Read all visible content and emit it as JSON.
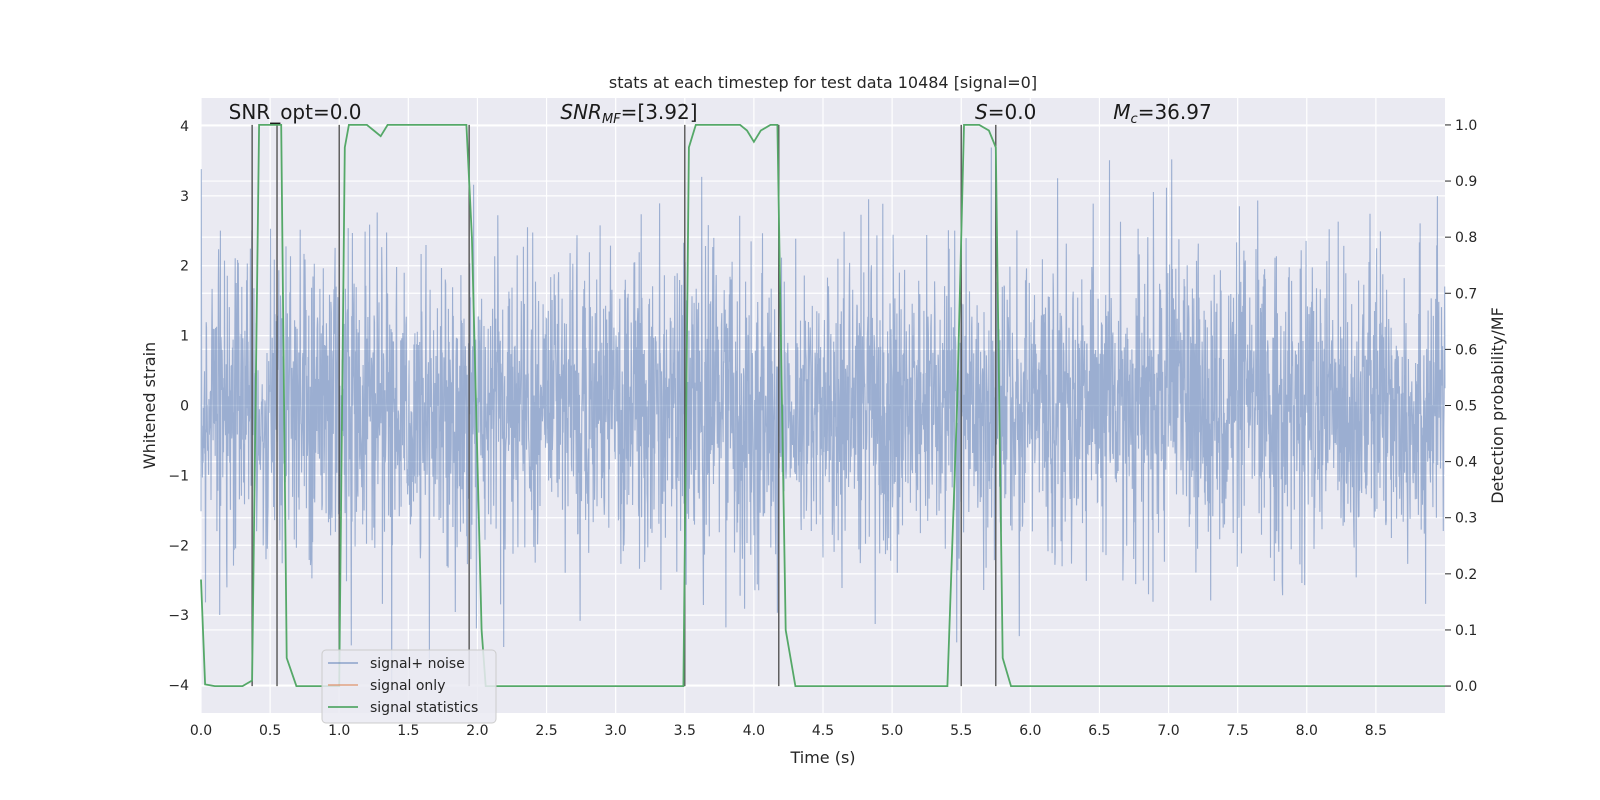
{
  "chart_data": {
    "type": "line",
    "title": "stats at each timestep for test data 10484 [signal=0]",
    "xlabel": "Time (s)",
    "ylabel": "Whitened strain",
    "y2label": "Detection probability/MF",
    "xlim": [
      0,
      9.0
    ],
    "ylim": [
      -4.4,
      4.4
    ],
    "y2lim": [
      -0.048,
      1.048
    ],
    "xticks": [
      0.0,
      0.5,
      1.0,
      1.5,
      2.0,
      2.5,
      3.0,
      3.5,
      4.0,
      4.5,
      5.0,
      5.5,
      6.0,
      6.5,
      7.0,
      7.5,
      8.0,
      8.5
    ],
    "xtick_labels": [
      "0.0",
      "0.5",
      "1.0",
      "1.5",
      "2.0",
      "2.5",
      "3.0",
      "3.5",
      "4.0",
      "4.5",
      "5.0",
      "5.5",
      "6.0",
      "6.5",
      "7.0",
      "7.5",
      "8.0",
      "8.5"
    ],
    "yticks": [
      -4,
      -3,
      -2,
      -1,
      0,
      1,
      2,
      3,
      4
    ],
    "ytick_labels": [
      "−4",
      "−3",
      "−2",
      "−1",
      "0",
      "1",
      "2",
      "3",
      "4"
    ],
    "y2ticks": [
      0.0,
      0.1,
      0.2,
      0.3,
      0.4,
      0.5,
      0.6,
      0.7,
      0.8,
      0.9,
      1.0
    ],
    "y2tick_labels": [
      "0.0",
      "0.1",
      "0.2",
      "0.3",
      "0.4",
      "0.5",
      "0.6",
      "0.7",
      "0.8",
      "0.9",
      "1.0"
    ],
    "grid": true,
    "legend_position": "lower-left",
    "series": [
      {
        "name": "signal+ noise",
        "color": "#4c72b0",
        "description": "whitened strain noise, roughly within ±2.5 with peaks to about ±4, spanning 0–9 s"
      },
      {
        "name": "signal only",
        "color": "#dd8452",
        "values": []
      },
      {
        "name": "signal statistics",
        "color": "#55a868",
        "axis": "right",
        "points": [
          [
            0.0,
            0.19
          ],
          [
            0.03,
            0.003
          ],
          [
            0.1,
            0.0
          ],
          [
            0.3,
            0.0
          ],
          [
            0.37,
            0.01
          ],
          [
            0.42,
            1.0
          ],
          [
            0.47,
            1.0
          ],
          [
            0.52,
            1.0
          ],
          [
            0.58,
            1.0
          ],
          [
            0.62,
            0.05
          ],
          [
            0.69,
            0.0
          ],
          [
            0.98,
            0.0
          ],
          [
            1.0,
            0.0
          ],
          [
            1.04,
            0.96
          ],
          [
            1.07,
            1.0
          ],
          [
            1.2,
            1.0
          ],
          [
            1.25,
            0.99
          ],
          [
            1.3,
            0.98
          ],
          [
            1.35,
            1.0
          ],
          [
            1.5,
            1.0
          ],
          [
            1.92,
            1.0
          ],
          [
            1.96,
            0.8
          ],
          [
            2.03,
            0.1
          ],
          [
            2.06,
            0.0
          ],
          [
            2.5,
            0.0
          ],
          [
            3.0,
            0.0
          ],
          [
            3.49,
            0.0
          ],
          [
            3.53,
            0.96
          ],
          [
            3.58,
            1.0
          ],
          [
            3.9,
            1.0
          ],
          [
            3.95,
            0.99
          ],
          [
            4.0,
            0.97
          ],
          [
            4.05,
            0.99
          ],
          [
            4.12,
            1.0
          ],
          [
            4.17,
            1.0
          ],
          [
            4.23,
            0.1
          ],
          [
            4.3,
            0.0
          ],
          [
            4.6,
            0.0
          ],
          [
            5.0,
            0.0
          ],
          [
            5.4,
            0.0
          ],
          [
            5.47,
            0.5
          ],
          [
            5.52,
            1.0
          ],
          [
            5.6,
            1.0
          ],
          [
            5.63,
            1.0
          ],
          [
            5.7,
            0.99
          ],
          [
            5.75,
            0.96
          ],
          [
            5.8,
            0.05
          ],
          [
            5.86,
            0.0
          ],
          [
            6.5,
            0.0
          ],
          [
            7.5,
            0.0
          ],
          [
            8.5,
            0.0
          ],
          [
            9.0,
            0.0
          ]
        ]
      }
    ],
    "vertical_markers": [
      0.37,
      0.55,
      1.0,
      1.94,
      3.5,
      4.18,
      5.5,
      5.75
    ],
    "annotations": [
      {
        "text": "SNR_opt=0.0",
        "x": 0.2,
        "y": 4.1
      },
      {
        "text_parts": [
          "SNR",
          "MF",
          "=[3.92]"
        ],
        "x": 2.6,
        "y": 4.1
      },
      {
        "text_parts": [
          "S",
          "=0.0"
        ],
        "x": 5.6,
        "y": 4.1
      },
      {
        "text_parts": [
          "M",
          "c",
          "=36.97"
        ],
        "x": 6.6,
        "y": 4.1
      }
    ]
  }
}
